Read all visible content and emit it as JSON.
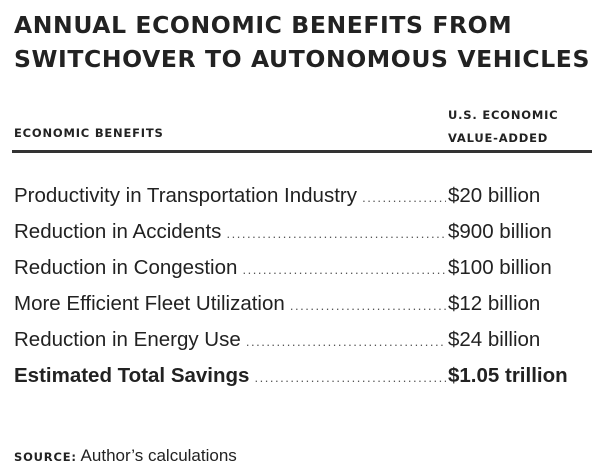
{
  "title": {
    "line1": "ANNUAL ECONOMIC BENEFITS FROM",
    "line2": "SWITCHOVER TO AUTONOMOUS VEHICLES"
  },
  "columns": {
    "left": "ECONOMIC BENEFITS",
    "right_line1": "U.S. ECONOMIC",
    "right_line2": "VALUE-ADDED"
  },
  "rows": [
    {
      "label": "Productivity in Transportation Industry",
      "value": "$20 billion"
    },
    {
      "label": "Reduction in Accidents",
      "value": "$900 billion"
    },
    {
      "label": "Reduction in Congestion",
      "value": "$100 billion"
    },
    {
      "label": "More Efficient Fleet Utilization",
      "value": "$12 billion"
    },
    {
      "label": "Reduction in Energy Use",
      "value": "$24 billion"
    }
  ],
  "total": {
    "label": "Estimated Total Savings",
    "value": "$1.05 trillion"
  },
  "source": {
    "label": "SOURCE:",
    "text": "Author’s calculations"
  }
}
